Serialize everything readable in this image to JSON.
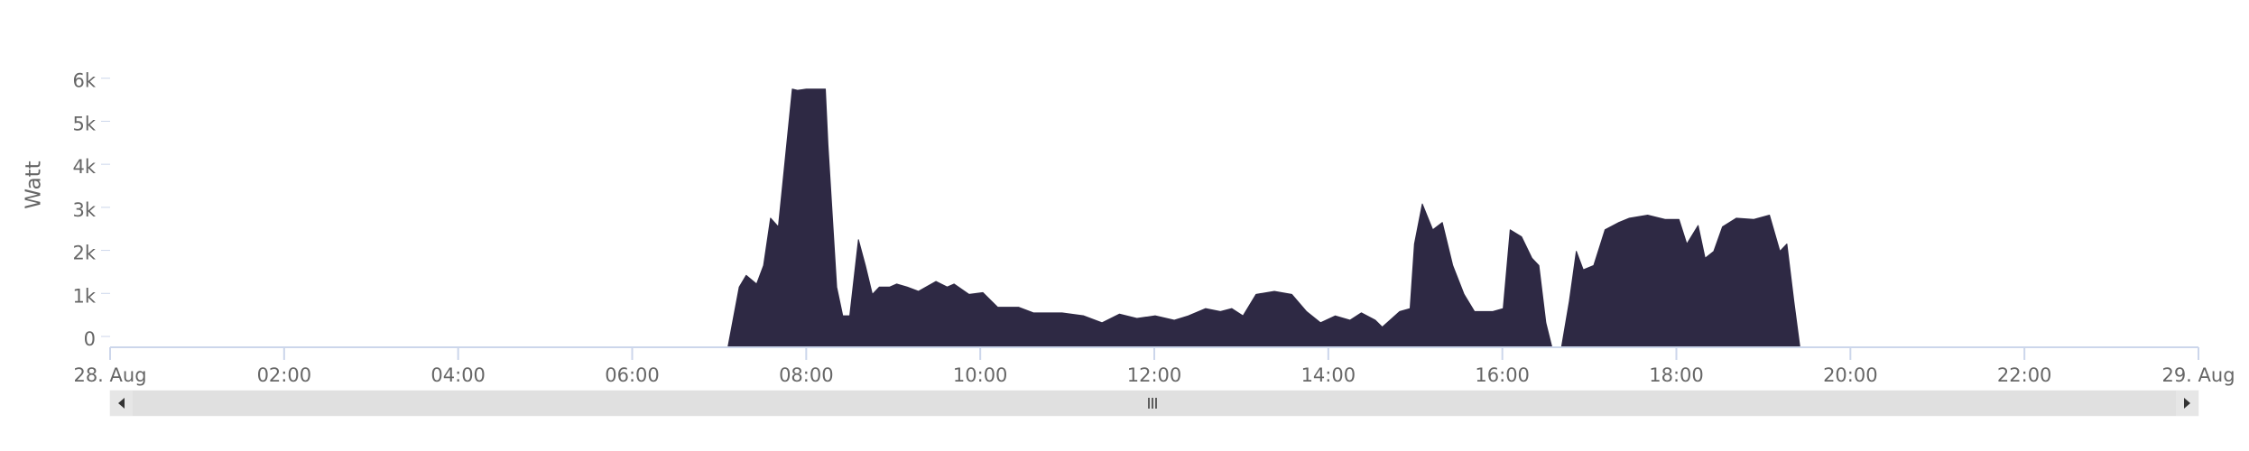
{
  "chart_data": {
    "type": "area",
    "y_label": "Watt",
    "color": "#2e2944",
    "x": [
      7.1,
      7.23,
      7.31,
      7.43,
      7.51,
      7.59,
      7.68,
      7.76,
      7.84,
      7.9,
      8.0,
      8.22,
      8.25,
      8.35,
      8.42,
      8.5,
      8.6,
      8.68,
      8.76,
      8.84,
      8.96,
      9.04,
      9.16,
      9.29,
      9.49,
      9.62,
      9.7,
      9.87,
      10.03,
      10.2,
      10.44,
      10.61,
      10.94,
      11.19,
      11.4,
      11.6,
      11.8,
      12.01,
      12.23,
      12.39,
      12.59,
      12.76,
      12.89,
      13.02,
      13.17,
      13.38,
      13.58,
      13.75,
      13.91,
      14.08,
      14.25,
      14.38,
      14.54,
      14.62,
      14.82,
      14.94,
      14.99,
      15.08,
      15.2,
      15.31,
      15.43,
      15.56,
      15.68,
      15.89,
      16.01,
      16.09,
      16.22,
      16.34,
      16.42,
      16.5,
      16.57,
      16.68,
      16.77,
      16.85,
      16.93,
      17.05,
      17.18,
      17.34,
      17.46,
      17.67,
      17.87,
      18.03,
      18.12,
      18.25,
      18.33,
      18.43,
      18.53,
      18.69,
      18.89,
      19.07,
      19.19,
      19.27,
      19.35,
      19.42
    ],
    "values": [
      0,
      1400,
      1670,
      1470,
      1900,
      3000,
      2800,
      4400,
      6000,
      5970,
      6000,
      6000,
      4700,
      1400,
      730,
      730,
      2500,
      1900,
      1230,
      1400,
      1400,
      1470,
      1400,
      1300,
      1530,
      1400,
      1470,
      1230,
      1270,
      930,
      930,
      800,
      800,
      730,
      570,
      770,
      670,
      730,
      630,
      730,
      900,
      830,
      900,
      730,
      1230,
      1300,
      1230,
      830,
      570,
      730,
      630,
      800,
      630,
      470,
      830,
      900,
      2400,
      3330,
      2730,
      2900,
      1900,
      1230,
      830,
      830,
      900,
      2730,
      2570,
      2070,
      1900,
      570,
      0,
      0,
      1070,
      2230,
      1800,
      1900,
      2730,
      2900,
      3000,
      3070,
      2970,
      2970,
      2400,
      2830,
      2070,
      2230,
      2800,
      3000,
      2970,
      3070,
      2230,
      2400,
      1070,
      0
    ],
    "xlim": [
      0,
      24
    ],
    "xticks": [
      {
        "value": 0,
        "label": "28. Aug"
      },
      {
        "value": 2,
        "label": "02:00"
      },
      {
        "value": 4,
        "label": "04:00"
      },
      {
        "value": 6,
        "label": "06:00"
      },
      {
        "value": 8,
        "label": "08:00"
      },
      {
        "value": 10,
        "label": "10:00"
      },
      {
        "value": 12,
        "label": "12:00"
      },
      {
        "value": 14,
        "label": "14:00"
      },
      {
        "value": 16,
        "label": "16:00"
      },
      {
        "value": 18,
        "label": "18:00"
      },
      {
        "value": 20,
        "label": "20:00"
      },
      {
        "value": 22,
        "label": "22:00"
      },
      {
        "value": 24,
        "label": "29. Aug"
      }
    ],
    "ylim": [
      0,
      7000
    ],
    "yticks": [
      0,
      {
        "value": 1000,
        "label": "1k"
      },
      {
        "value": 2000,
        "label": "2k"
      },
      {
        "value": 3000,
        "label": "3k"
      },
      {
        "value": 4000,
        "label": "4k"
      },
      {
        "value": 5000,
        "label": "5k"
      },
      {
        "value": 6000,
        "label": "6k"
      }
    ]
  }
}
